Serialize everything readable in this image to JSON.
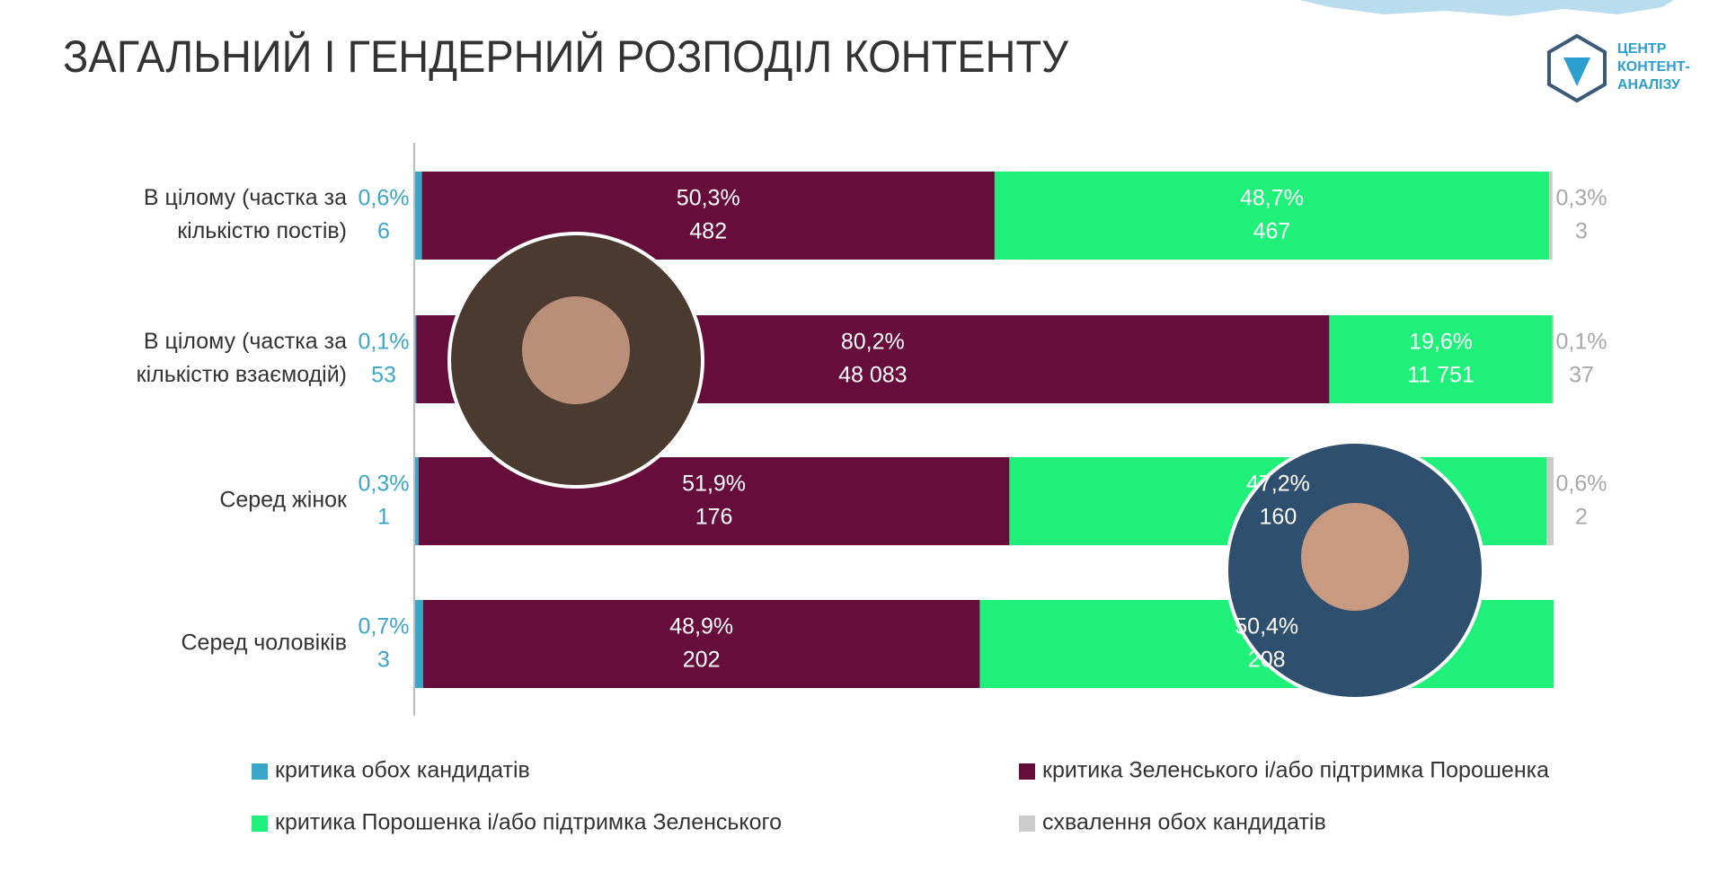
{
  "chart_data": {
    "type": "stacked_bar_horizontal",
    "title": "ЗАГАЛЬНИЙ І ГЕНДЕРНИЙ РОЗПОДІЛ КОНТЕНТУ",
    "logo": [
      "ЦЕНТР",
      "КОНТЕНТ-",
      "АНАЛІЗУ"
    ],
    "categories": [
      [
        "В цілому (частка за",
        "кількістю постів)"
      ],
      [
        "В цілому (частка за",
        "кількістю взаємодій)"
      ],
      [
        "Серед жінок"
      ],
      [
        "Серед чоловіків"
      ]
    ],
    "xlim": [
      0,
      100
    ],
    "series": [
      {
        "name": "критика обох кандидатів",
        "color": "#3aa6c9",
        "label_position": "left",
        "values": [
          0.6,
          0.1,
          0.3,
          0.7
        ],
        "value_labels": [
          "0,6%",
          "0,1%",
          "0,3%",
          "0,7%"
        ],
        "counts": [
          6,
          53,
          1,
          3
        ]
      },
      {
        "name": "критика Зеленського і/або підтримка Порошенка",
        "color": "#670d3b",
        "label_position": "inside",
        "values": [
          50.3,
          80.2,
          51.9,
          48.9
        ],
        "value_labels": [
          "50,3%",
          "80,2%",
          "51,9%",
          "48,9%"
        ],
        "counts": [
          482,
          {
            "value": 48083,
            "label": "48 083"
          },
          176,
          202
        ]
      },
      {
        "name": "критика Порошенка і/або підтримка Зеленського",
        "color": "#1ef07a",
        "label_position": "inside",
        "values": [
          48.7,
          19.6,
          47.2,
          50.4
        ],
        "value_labels": [
          "48,7%",
          "19,6%",
          "47,2%",
          "50,4%"
        ],
        "counts": [
          467,
          {
            "value": 11751,
            "label": "11 751"
          },
          160,
          208
        ]
      },
      {
        "name": "схвалення обох кандидатів",
        "color": "#cccccc",
        "label_position": "right",
        "values": [
          0.3,
          0.1,
          0.6,
          null
        ],
        "value_labels": [
          "0,3%",
          "0,1%",
          "0,6%",
          null
        ],
        "counts": [
          3,
          37,
          2,
          null
        ]
      }
    ]
  }
}
